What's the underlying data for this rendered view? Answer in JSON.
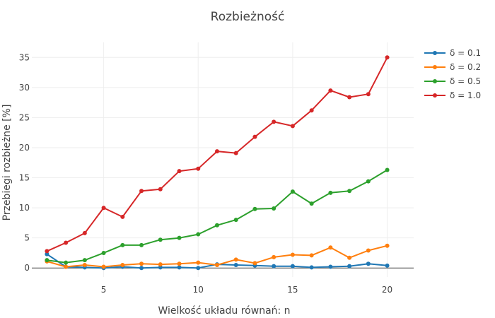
{
  "chart_data": {
    "type": "line",
    "title": "Rozbieżność",
    "xlabel": "Wielkość układu równań: n",
    "ylabel": "Przebiegi rozbieżne [%]",
    "xlim": [
      1.2,
      21.4
    ],
    "ylim": [
      -1.5,
      37.5
    ],
    "x_ticks": [
      5,
      10,
      15,
      20
    ],
    "y_ticks": [
      0,
      5,
      10,
      15,
      20,
      25,
      30,
      35
    ],
    "grid": true,
    "legend_position": "top-right",
    "x": [
      2,
      3,
      4,
      5,
      6,
      7,
      8,
      9,
      10,
      11,
      12,
      13,
      14,
      15,
      16,
      17,
      18,
      19,
      20
    ],
    "series": [
      {
        "name": "δ = 0.1",
        "color": "#1f77b4",
        "values": [
          2.3,
          0.2,
          0.1,
          0.0,
          0.2,
          0.0,
          0.1,
          0.1,
          0.0,
          0.6,
          0.5,
          0.4,
          0.3,
          0.3,
          0.1,
          0.2,
          0.3,
          0.7,
          0.4
        ]
      },
      {
        "name": "δ = 0.2",
        "color": "#ff7f0e",
        "values": [
          1.1,
          0.2,
          0.5,
          0.2,
          0.5,
          0.7,
          0.6,
          0.7,
          0.9,
          0.5,
          1.4,
          0.8,
          1.8,
          2.2,
          2.1,
          3.4,
          1.7,
          2.9,
          3.7
        ]
      },
      {
        "name": "δ = 0.5",
        "color": "#2ca02c",
        "values": [
          1.3,
          0.9,
          1.3,
          2.5,
          3.8,
          3.8,
          4.7,
          5.0,
          5.6,
          7.1,
          8.0,
          9.8,
          9.9,
          12.7,
          10.7,
          12.5,
          12.8,
          14.4,
          16.3
        ]
      },
      {
        "name": "δ = 1.0",
        "color": "#d62728",
        "values": [
          2.8,
          4.2,
          5.8,
          10.0,
          8.5,
          12.8,
          13.1,
          16.1,
          16.5,
          19.4,
          19.1,
          21.8,
          24.3,
          23.6,
          26.2,
          29.5,
          28.4,
          28.9,
          35.0
        ]
      }
    ]
  }
}
